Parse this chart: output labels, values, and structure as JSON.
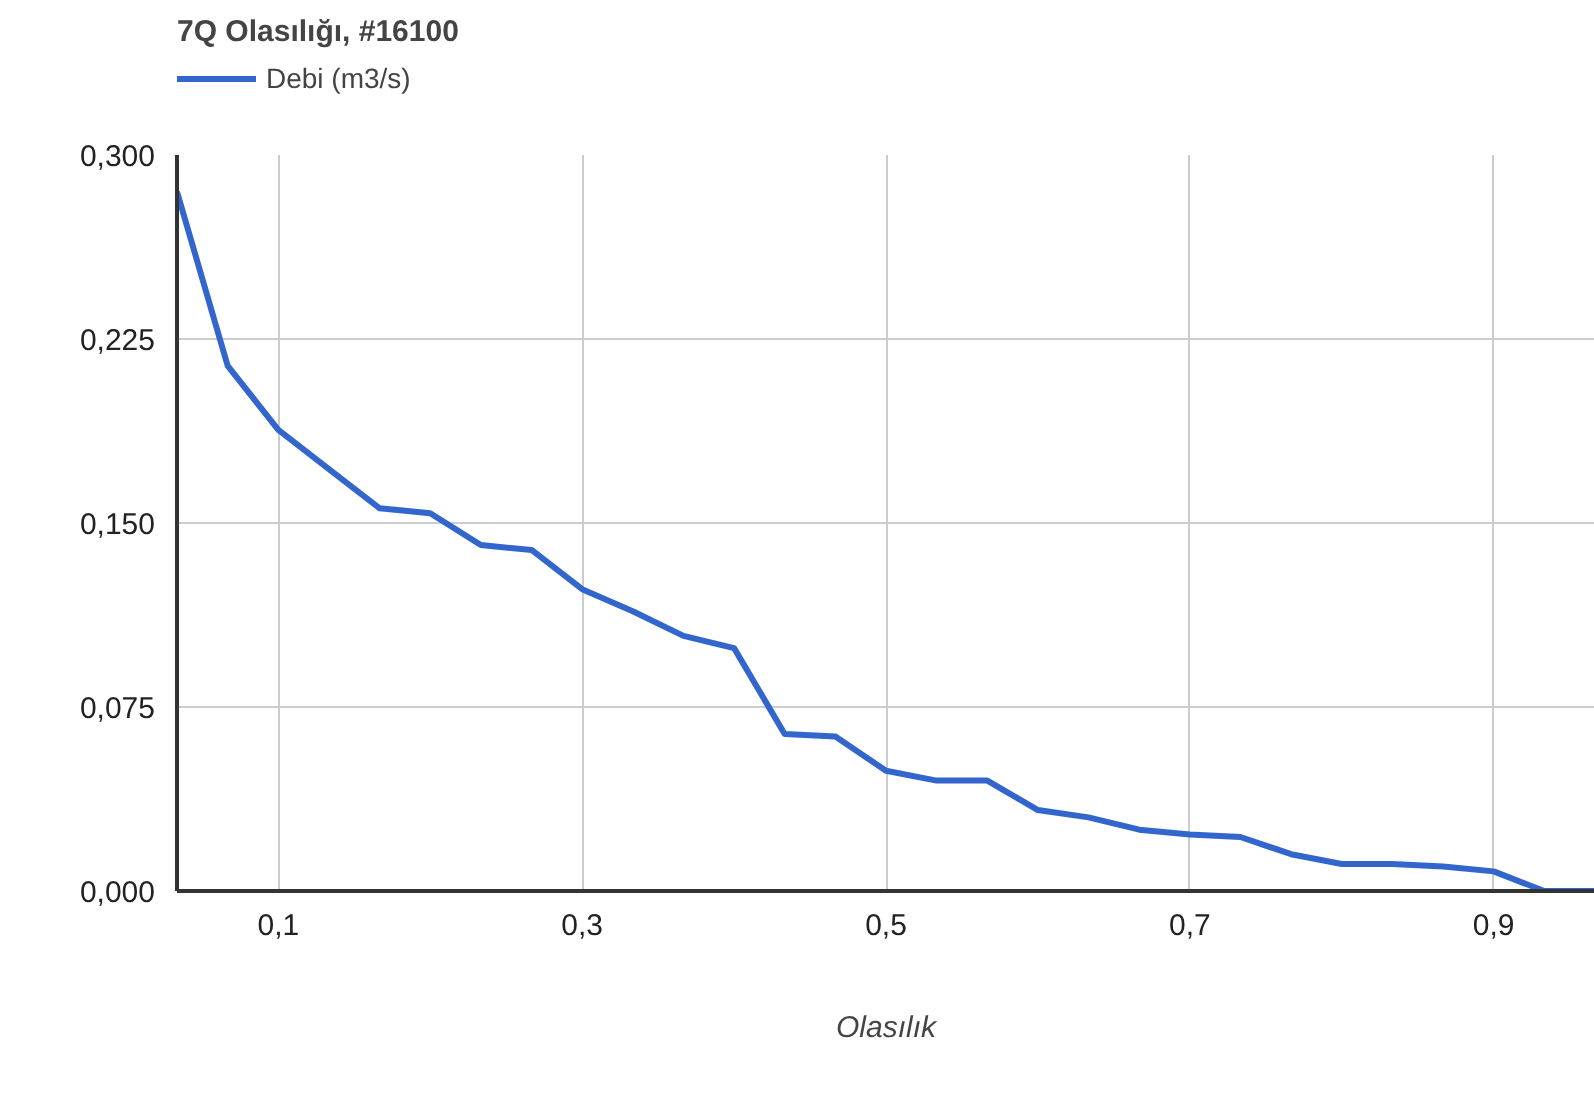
{
  "chart_data": {
    "type": "line",
    "title": "7Q Olasılığı, #16100",
    "xlabel": "Olasılık",
    "x": [
      0.0333,
      0.0667,
      0.1,
      0.1333,
      0.1667,
      0.2,
      0.2333,
      0.2667,
      0.3,
      0.3333,
      0.3667,
      0.4,
      0.4333,
      0.4667,
      0.5,
      0.5333,
      0.5667,
      0.6,
      0.6333,
      0.6667,
      0.7,
      0.7333,
      0.7667,
      0.8,
      0.8333,
      0.8667,
      0.9,
      0.9333,
      0.9667
    ],
    "series": [
      {
        "name": "Debi (m3/s)",
        "color": "#3366cc",
        "values": [
          0.285,
          0.214,
          0.188,
          0.172,
          0.156,
          0.154,
          0.141,
          0.139,
          0.123,
          0.114,
          0.104,
          0.099,
          0.064,
          0.063,
          0.049,
          0.045,
          0.045,
          0.033,
          0.03,
          0.025,
          0.023,
          0.022,
          0.015,
          0.011,
          0.011,
          0.01,
          0.008,
          0.0,
          0.0
        ]
      }
    ],
    "xlim": [
      0.0333,
      0.9667
    ],
    "ylim": [
      0,
      0.3
    ],
    "xticks": [
      {
        "value": 0.1,
        "label": "0,1"
      },
      {
        "value": 0.3,
        "label": "0,3"
      },
      {
        "value": 0.5,
        "label": "0,5"
      },
      {
        "value": 0.7,
        "label": "0,7"
      },
      {
        "value": 0.9,
        "label": "0,9"
      }
    ],
    "yticks": [
      {
        "value": 0,
        "label": "0,000"
      },
      {
        "value": 0.075,
        "label": "0,075"
      },
      {
        "value": 0.15,
        "label": "0,150"
      },
      {
        "value": 0.225,
        "label": "0,225"
      },
      {
        "value": 0.3,
        "label": "0,300"
      }
    ],
    "grid": true,
    "legend": "top left",
    "line_style": "solid"
  }
}
